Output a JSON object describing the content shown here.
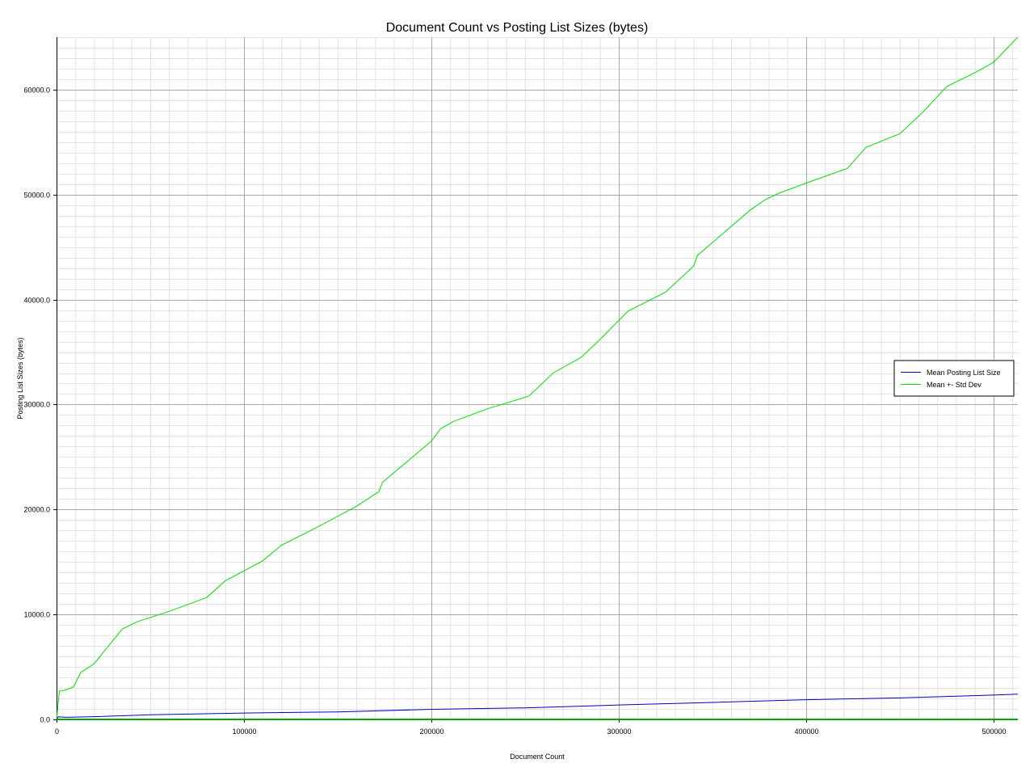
{
  "chart_data": {
    "type": "line",
    "title": "Document Count vs Posting List Sizes (bytes)",
    "xlabel": "Document Count",
    "ylabel": "Posting List Sizes (bytes)",
    "xlim": [
      0,
      513000
    ],
    "ylim": [
      0,
      65000
    ],
    "x_ticks": [
      {
        "value": 0,
        "label": "0"
      },
      {
        "value": 100000,
        "label": "100000"
      },
      {
        "value": 200000,
        "label": "200000"
      },
      {
        "value": 300000,
        "label": "300000"
      },
      {
        "value": 400000,
        "label": "400000"
      },
      {
        "value": 500000,
        "label": "500000"
      }
    ],
    "y_ticks": [
      {
        "value": 0,
        "label": "0.0"
      },
      {
        "value": 10000,
        "label": "10000.0"
      },
      {
        "value": 20000,
        "label": "20000.0"
      },
      {
        "value": 30000,
        "label": "30000.0"
      },
      {
        "value": 40000,
        "label": "40000.0"
      },
      {
        "value": 50000,
        "label": "50000.0"
      },
      {
        "value": 60000,
        "label": "60000.0"
      }
    ],
    "grid": true,
    "legend_position": "right",
    "series": [
      {
        "name": "Mean Posting List Size",
        "color": "#0000cc",
        "points": [
          [
            0,
            0
          ],
          [
            1000,
            250
          ],
          [
            5000,
            200
          ],
          [
            20000,
            260
          ],
          [
            50000,
            440
          ],
          [
            100000,
            610
          ],
          [
            150000,
            720
          ],
          [
            200000,
            960
          ],
          [
            250000,
            1100
          ],
          [
            300000,
            1380
          ],
          [
            350000,
            1620
          ],
          [
            400000,
            1880
          ],
          [
            450000,
            2050
          ],
          [
            500000,
            2320
          ],
          [
            513000,
            2400
          ]
        ]
      },
      {
        "name": "Mean +- Std Dev",
        "color": "#00dd00",
        "points": [
          [
            0,
            0
          ],
          [
            1500,
            2700
          ],
          [
            5000,
            2800
          ],
          [
            9000,
            3100
          ],
          [
            13000,
            4500
          ],
          [
            20000,
            5300
          ],
          [
            30000,
            7500
          ],
          [
            35000,
            8600
          ],
          [
            43000,
            9300
          ],
          [
            60000,
            10300
          ],
          [
            80000,
            11600
          ],
          [
            90000,
            13200
          ],
          [
            110000,
            15100
          ],
          [
            120000,
            16600
          ],
          [
            140000,
            18400
          ],
          [
            160000,
            20300
          ],
          [
            172000,
            21700
          ],
          [
            174000,
            22600
          ],
          [
            200000,
            26500
          ],
          [
            205000,
            27700
          ],
          [
            212000,
            28400
          ],
          [
            230000,
            29600
          ],
          [
            252000,
            30800
          ],
          [
            265000,
            33000
          ],
          [
            280000,
            34500
          ],
          [
            290000,
            36200
          ],
          [
            305000,
            38900
          ],
          [
            325000,
            40700
          ],
          [
            340000,
            43200
          ],
          [
            342000,
            44200
          ],
          [
            355000,
            46200
          ],
          [
            370000,
            48500
          ],
          [
            378000,
            49500
          ],
          [
            385000,
            50100
          ],
          [
            400000,
            51100
          ],
          [
            422000,
            52500
          ],
          [
            432000,
            54500
          ],
          [
            450000,
            55800
          ],
          [
            462000,
            57800
          ],
          [
            475000,
            60300
          ],
          [
            490000,
            61600
          ],
          [
            500000,
            62600
          ],
          [
            513000,
            65000
          ]
        ]
      },
      {
        "name": "",
        "color": "#00aa00",
        "points": [
          [
            0,
            0
          ],
          [
            513000,
            0
          ]
        ]
      }
    ]
  }
}
